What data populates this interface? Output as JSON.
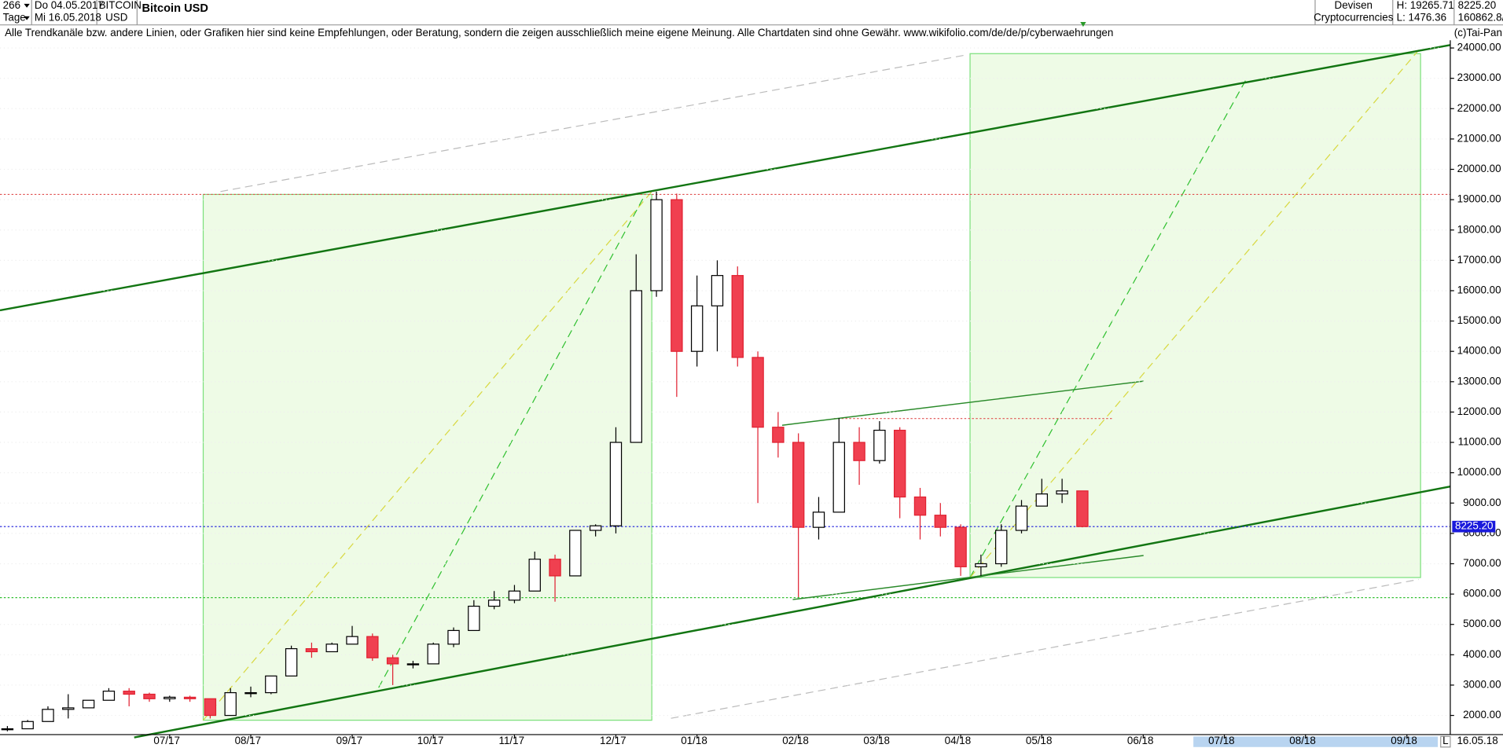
{
  "header": {
    "count": "266",
    "period": "Tage",
    "start_date": "Do 04.05.2017",
    "end_date": "Mi 16.05.2018",
    "symbol": "BITCOIN",
    "currency": "USD",
    "market": "Devisen",
    "market_sub": "Cryptocurrencies",
    "high": "H: 19265.71",
    "low": "L: 1476.36",
    "last": "8225.20",
    "volume": "160862.8/",
    "copyright": "(c)Tai-Pan",
    "disclaimer": "Alle Trendkanäle bzw. andere Linien, oder Grafiken hier sind keine Empfehlungen, oder Beratung, sondern die zeigen ausschließlich meine eigene Meinung. Alle Chartdaten sind ohne Gewähr.  www.wikifolio.com/de/de/p/cyberwaehrungen",
    "footer_date": "16.05.18",
    "footer_mode": "L"
  },
  "chart_data": {
    "type": "candlestick",
    "title": "Bitcoin USD",
    "categories": [
      null,
      null,
      null,
      null,
      null,
      null,
      null,
      null,
      "07/17",
      null,
      null,
      null,
      "08/17",
      null,
      null,
      null,
      null,
      "09/17",
      null,
      null,
      null,
      "10/17",
      null,
      null,
      null,
      "11/17",
      null,
      null,
      null,
      null,
      "12/17",
      null,
      null,
      null,
      "01/18",
      null,
      null,
      null,
      null,
      "02/18",
      null,
      null,
      null,
      "03/18",
      null,
      null,
      null,
      "04/18",
      null,
      null,
      null,
      "05/18",
      null,
      null,
      null,
      null,
      "06/18",
      null,
      null,
      null,
      "07/18",
      null,
      null,
      null,
      "08/18",
      null,
      null,
      null,
      null,
      "09/18",
      null
    ],
    "open": [
      1530,
      1560,
      1800,
      2200,
      2250,
      2500,
      2800,
      2700,
      2550,
      2600,
      2550,
      2000,
      2750,
      2750,
      3300,
      4200,
      4100,
      4350,
      4600,
      3900,
      3700,
      3700,
      4350,
      4800,
      5600,
      5800,
      6100,
      7150,
      6600,
      8100,
      8250,
      11000,
      16000,
      19000,
      14000,
      15500,
      16500,
      13800,
      11500,
      11000,
      8200,
      8700,
      11000,
      10400,
      11400,
      9200,
      8600,
      8200,
      6900,
      7000,
      8100,
      8900,
      9300,
      9400,
      null,
      null,
      null,
      null,
      null,
      null,
      null,
      null,
      null,
      null,
      null,
      null,
      null,
      null,
      null,
      null,
      null
    ],
    "high": [
      1650,
      1850,
      2300,
      2700,
      2500,
      2900,
      2900,
      2750,
      2650,
      2650,
      2550,
      2900,
      2950,
      3300,
      4300,
      4400,
      4400,
      4950,
      4700,
      4000,
      3800,
      4400,
      4900,
      5800,
      6100,
      6300,
      7400,
      7300,
      8100,
      8300,
      11500,
      17200,
      19265.71,
      19200,
      16500,
      17000,
      16800,
      14000,
      12000,
      11300,
      9200,
      11800,
      11500,
      11700,
      11500,
      9500,
      9000,
      8300,
      7300,
      8300,
      9100,
      9800,
      9800,
      9400,
      null,
      null,
      null,
      null,
      null,
      null,
      null,
      null,
      null,
      null,
      null,
      null,
      null,
      null,
      null,
      null,
      null
    ],
    "low": [
      1476.36,
      1560,
      1800,
      1900,
      2250,
      2500,
      2300,
      2450,
      2450,
      2450,
      1900,
      2000,
      2600,
      2700,
      3300,
      3900,
      4100,
      4350,
      3800,
      3000,
      3550,
      3700,
      4250,
      4800,
      5500,
      5700,
      6100,
      5750,
      6600,
      7900,
      8000,
      11000,
      15800,
      12500,
      13500,
      14000,
      13500,
      9000,
      10500,
      5900,
      7800,
      8700,
      9600,
      10300,
      8500,
      7800,
      7900,
      6600,
      6600,
      6900,
      8000,
      8900,
      9000,
      8200,
      null,
      null,
      null,
      null,
      null,
      null,
      null,
      null,
      null,
      null,
      null,
      null,
      null,
      null,
      null,
      null,
      null
    ],
    "close": [
      1560,
      1800,
      2200,
      2250,
      2500,
      2800,
      2700,
      2550,
      2600,
      2550,
      2000,
      2750,
      2750,
      3300,
      4200,
      4100,
      4350,
      4600,
      3900,
      3700,
      3700,
      4350,
      4800,
      5600,
      5800,
      6100,
      7150,
      6600,
      8100,
      8250,
      11000,
      16000,
      19000,
      14000,
      15500,
      16500,
      13800,
      11500,
      11000,
      8200,
      8700,
      11000,
      10400,
      11400,
      9200,
      8600,
      8200,
      6900,
      7000,
      8100,
      8900,
      9300,
      9400,
      8225.2,
      null,
      null,
      null,
      null,
      null,
      null,
      null,
      null,
      null,
      null,
      null,
      null,
      null,
      null,
      null,
      null,
      null
    ],
    "up_color": "#ffffff",
    "down_color": "#f04050",
    "up_edge": "#000000",
    "down_edge": "#e02030",
    "last_price": {
      "value": 8225.2,
      "label": "8225.20"
    },
    "last_color": "#1a1adc",
    "ylim": [
      1400,
      24950
    ],
    "yticks": [
      {
        "value": 2000,
        "label": "2000.00"
      },
      {
        "value": 3000,
        "label": "3000.00"
      },
      {
        "value": 4000,
        "label": "4000.00"
      },
      {
        "value": 5000,
        "label": "5000.00"
      },
      {
        "value": 6000,
        "label": "6000.00"
      },
      {
        "value": 7000,
        "label": "7000.00"
      },
      {
        "value": 8000,
        "label": "8000.00"
      },
      {
        "value": 9000,
        "label": "9000.00"
      },
      {
        "value": 10000,
        "label": "10000.00"
      },
      {
        "value": 11000,
        "label": "11000.00"
      },
      {
        "value": 12000,
        "label": "12000.00"
      },
      {
        "value": 13000,
        "label": "13000.00"
      },
      {
        "value": 14000,
        "label": "14000.00"
      },
      {
        "value": 15000,
        "label": "15000.00"
      },
      {
        "value": 16000,
        "label": "16000.00"
      },
      {
        "value": 17000,
        "label": "17000.00"
      },
      {
        "value": 18000,
        "label": "18000.00"
      },
      {
        "value": 19000,
        "label": "19000.00"
      },
      {
        "value": 20000,
        "label": "20000.00"
      },
      {
        "value": 21000,
        "label": "21000.00"
      },
      {
        "value": 22000,
        "label": "22000.00"
      },
      {
        "value": 23000,
        "label": "23000.00"
      },
      {
        "value": 24000,
        "label": "24000.00"
      }
    ],
    "grid": true
  }
}
